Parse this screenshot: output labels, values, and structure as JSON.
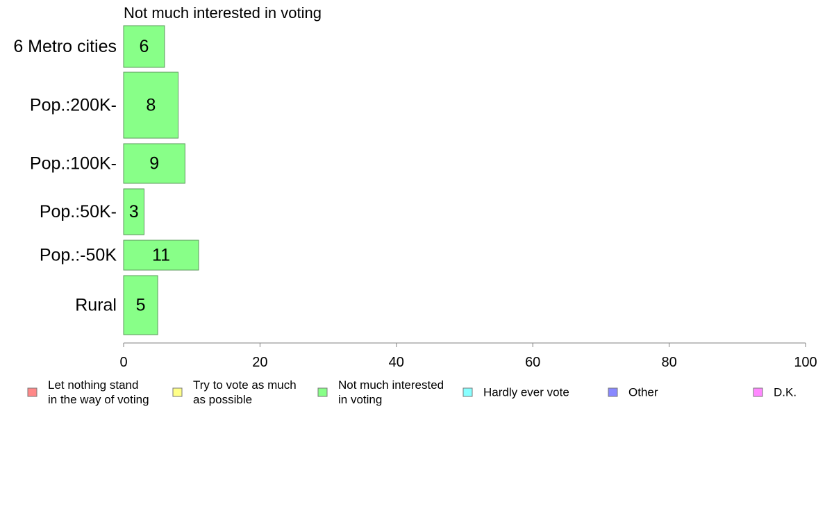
{
  "chart_data": {
    "type": "bar",
    "orientation": "horizontal",
    "title": "Not much interested in voting",
    "categories": [
      "6 Metro cities",
      "Pop.:200K-",
      "Pop.:100K-",
      "Pop.:50K-",
      "Pop.:-50K",
      "Rural"
    ],
    "values": [
      6,
      8,
      9,
      3,
      11,
      5
    ],
    "bar_color": "#88ff88",
    "bar_stroke": "#5a9a5a",
    "xlim": [
      0,
      100
    ],
    "xticks": [
      0,
      20,
      40,
      60,
      80,
      100
    ],
    "xlabel": "",
    "ylabel": "",
    "grid": false,
    "legend_position": "bottom",
    "legend": [
      {
        "lines": [
          "Let nothing stand",
          "in the way of voting"
        ],
        "color": "#ff8888"
      },
      {
        "lines": [
          "Try to vote as much",
          "as possible"
        ],
        "color": "#ffff88"
      },
      {
        "lines": [
          "Not much interested",
          "in voting"
        ],
        "color": "#88ff88"
      },
      {
        "lines": [
          "Hardly ever vote"
        ],
        "color": "#88ffff"
      },
      {
        "lines": [
          "Other"
        ],
        "color": "#8888ff"
      },
      {
        "lines": [
          "D.K."
        ],
        "color": "#ff88ff"
      }
    ]
  }
}
